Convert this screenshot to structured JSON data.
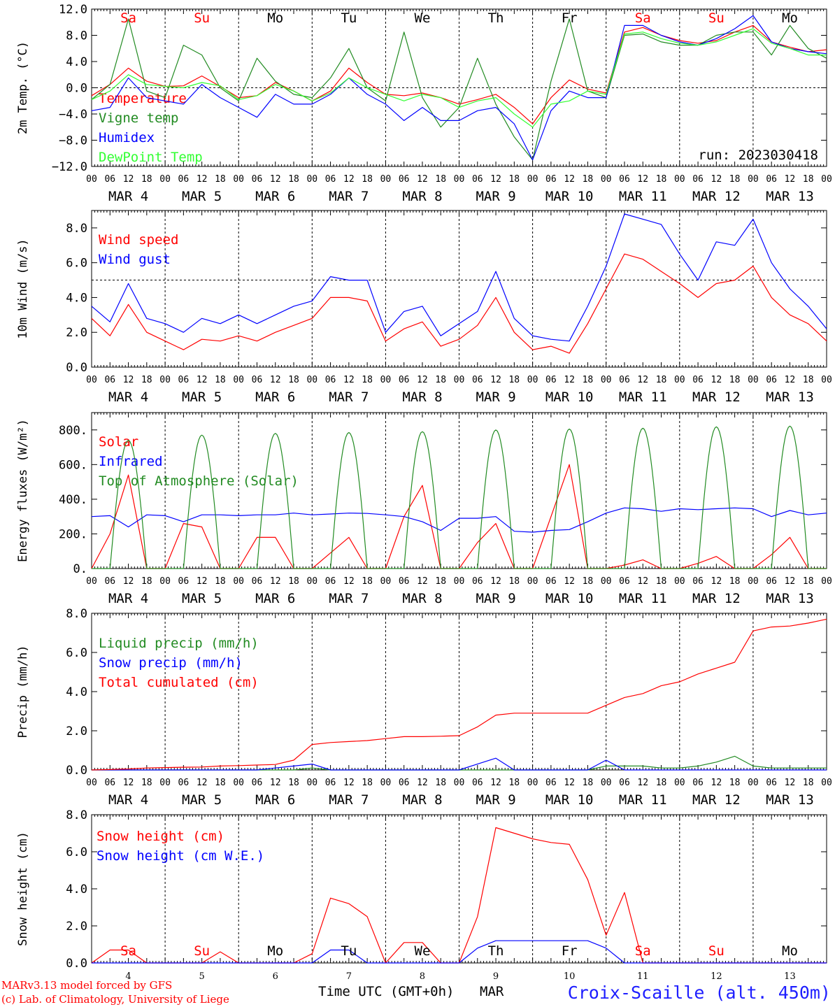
{
  "run_label": "run: 2023030418",
  "hour_ticks": [
    "00",
    "06",
    "12",
    "18"
  ],
  "day_labels": [
    "MAR  4",
    "MAR  5",
    "MAR  6",
    "MAR  7",
    "MAR  8",
    "MAR  9",
    "MAR 10",
    "MAR 11",
    "MAR 12",
    "MAR 13"
  ],
  "weekdays": [
    "Sa",
    "Su",
    "Mo",
    "Tu",
    "We",
    "Th",
    "Fr",
    "Sa",
    "Su",
    "Mo"
  ],
  "weekday_colors": [
    "#ff0000",
    "#ff0000",
    "#000000",
    "#000000",
    "#000000",
    "#000000",
    "#000000",
    "#ff0000",
    "#ff0000",
    "#000000"
  ],
  "bottom_days": [
    "4",
    "5",
    "6",
    "7",
    "8",
    "9",
    "10",
    "11",
    "12",
    "13"
  ],
  "footer": {
    "model": "MARv3.13 model forced by GFS",
    "lab": "(c) Lab. of Climatology, University of Liege",
    "axis_title": "Time UTC (GMT+0h)",
    "axis_month": "MAR",
    "station": "Croix-Scaille (alt. 450m)"
  },
  "chart_data": [
    {
      "type": "line",
      "ylabel": "2m Temp. (°C)",
      "ylim": [
        -12,
        12
      ],
      "yticks": [
        "12.0",
        "8.0",
        "4.0",
        "0.0",
        "−4.0",
        "−8.0",
        "−12.0"
      ],
      "ref_line": 0,
      "x_hours": [
        0,
        6,
        12,
        18,
        24,
        30,
        36,
        42,
        48,
        54,
        60,
        66,
        72,
        78,
        84,
        90,
        96,
        102,
        108,
        114,
        120,
        126,
        132,
        138,
        144,
        150,
        156,
        162,
        168,
        174,
        180,
        186,
        192,
        198,
        204,
        210,
        216,
        222,
        228,
        234,
        240
      ],
      "series": [
        {
          "name": "Temperature",
          "color": "#ff0000",
          "values": [
            -1.2,
            0.5,
            3.0,
            1.0,
            0.2,
            0.3,
            1.8,
            0.2,
            -1.5,
            -1.2,
            0.8,
            -0.5,
            -2.0,
            -0.5,
            3.0,
            0.8,
            -1.0,
            -1.2,
            -0.8,
            -1.5,
            -2.5,
            -1.8,
            -1.0,
            -3.0,
            -5.5,
            -1.5,
            1.2,
            -0.2,
            -0.8,
            8.5,
            9.2,
            8.0,
            7.2,
            6.8,
            7.2,
            8.5,
            9.5,
            7.0,
            6.2,
            5.5,
            5.8
          ]
        },
        {
          "name": "Vigne temp",
          "color": "#228b22",
          "values": [
            -1.8,
            0.5,
            10.5,
            -0.5,
            -1.5,
            6.5,
            5.0,
            0.0,
            -2.0,
            4.5,
            1.0,
            -1.0,
            -1.5,
            1.5,
            6.0,
            0.0,
            -2.0,
            8.5,
            -1.5,
            -6.0,
            -3.0,
            4.5,
            -2.5,
            -7.5,
            -11.0,
            1.0,
            10.5,
            -0.5,
            -1.5,
            8.0,
            8.2,
            7.0,
            6.5,
            6.5,
            8.0,
            8.5,
            8.5,
            5.0,
            9.5,
            6.0,
            4.5
          ]
        },
        {
          "name": "Humidex",
          "color": "#0000ff",
          "values": [
            -3.5,
            -3.0,
            1.5,
            -1.5,
            -2.0,
            -2.5,
            0.5,
            -1.5,
            -3.0,
            -4.5,
            -1.0,
            -2.5,
            -2.5,
            -1.0,
            1.5,
            -1.0,
            -2.5,
            -5.0,
            -3.0,
            -5.0,
            -5.0,
            -3.5,
            -3.0,
            -5.5,
            -11.0,
            -3.5,
            -0.5,
            -1.5,
            -1.5,
            9.5,
            9.5,
            8.0,
            7.0,
            6.5,
            7.5,
            9.0,
            11.0,
            7.0,
            6.0,
            5.5,
            5.2
          ]
        },
        {
          "name": "DewPoint Temp",
          "color": "#33ff33",
          "values": [
            -1.8,
            -0.5,
            2.0,
            0.5,
            0.2,
            0.0,
            0.8,
            0.3,
            -1.8,
            -1.2,
            0.5,
            -0.5,
            -2.0,
            -0.8,
            1.5,
            0.0,
            -1.0,
            -2.0,
            -1.0,
            -1.5,
            -3.0,
            -2.0,
            -1.5,
            -4.0,
            -6.0,
            -2.5,
            -2.0,
            -0.5,
            -1.0,
            8.2,
            8.5,
            7.5,
            6.8,
            6.5,
            7.0,
            8.0,
            9.0,
            6.8,
            6.0,
            5.0,
            5.0
          ]
        }
      ]
    },
    {
      "type": "line",
      "ylabel": "10m Wind (m/s)",
      "ylim": [
        0,
        9
      ],
      "yticks": [
        "8.0",
        "6.0",
        "4.0",
        "2.0",
        "0.0"
      ],
      "ref_line": 5,
      "x_hours": [
        0,
        6,
        12,
        18,
        24,
        30,
        36,
        42,
        48,
        54,
        60,
        66,
        72,
        78,
        84,
        90,
        96,
        102,
        108,
        114,
        120,
        126,
        132,
        138,
        144,
        150,
        156,
        162,
        168,
        174,
        180,
        186,
        192,
        198,
        204,
        210,
        216,
        222,
        228,
        234,
        240
      ],
      "series": [
        {
          "name": "Wind speed",
          "color": "#ff0000",
          "values": [
            2.8,
            1.8,
            3.6,
            2.0,
            1.5,
            1.0,
            1.6,
            1.5,
            1.8,
            1.5,
            2.0,
            2.4,
            2.8,
            4.0,
            4.0,
            3.8,
            1.5,
            2.2,
            2.6,
            1.2,
            1.6,
            2.4,
            4.0,
            2.0,
            1.0,
            1.2,
            0.8,
            2.5,
            4.5,
            6.5,
            6.2,
            5.5,
            4.8,
            4.0,
            4.8,
            5.0,
            5.8,
            4.0,
            3.0,
            2.5,
            1.5
          ]
        },
        {
          "name": "Wind gust",
          "color": "#0000ff",
          "values": [
            3.5,
            2.6,
            4.8,
            2.8,
            2.5,
            2.0,
            2.8,
            2.5,
            3.0,
            2.5,
            3.0,
            3.5,
            3.8,
            5.2,
            5.0,
            5.0,
            2.0,
            3.2,
            3.5,
            1.8,
            2.5,
            3.2,
            5.5,
            2.8,
            1.8,
            1.6,
            1.5,
            3.5,
            5.8,
            8.8,
            8.5,
            8.2,
            6.5,
            5.0,
            7.2,
            7.0,
            8.5,
            6.0,
            4.5,
            3.5,
            2.2
          ]
        }
      ]
    },
    {
      "type": "line",
      "ylabel": "Energy fluxes (W/m²)",
      "ylim": [
        0,
        900
      ],
      "yticks": [
        "800.",
        "600.",
        "400.",
        "200.",
        "0."
      ],
      "x_hours": [
        0,
        6,
        12,
        18,
        24,
        30,
        36,
        42,
        48,
        54,
        60,
        66,
        72,
        78,
        84,
        90,
        96,
        102,
        108,
        114,
        120,
        126,
        132,
        138,
        144,
        150,
        156,
        162,
        168,
        174,
        180,
        186,
        192,
        198,
        204,
        210,
        216,
        222,
        228,
        234,
        240
      ],
      "series": [
        {
          "name": "Solar",
          "color": "#ff0000",
          "values": [
            0,
            200,
            540,
            0,
            0,
            260,
            240,
            0,
            0,
            180,
            180,
            0,
            0,
            90,
            180,
            0,
            0,
            300,
            480,
            0,
            0,
            150,
            260,
            0,
            0,
            300,
            600,
            0,
            0,
            20,
            50,
            0,
            0,
            30,
            70,
            0,
            0,
            80,
            180,
            0,
            0
          ]
        },
        {
          "name": "Infrared",
          "color": "#0000ff",
          "values": [
            300,
            305,
            240,
            310,
            305,
            270,
            310,
            310,
            305,
            310,
            310,
            320,
            310,
            315,
            320,
            318,
            310,
            300,
            270,
            220,
            290,
            290,
            300,
            215,
            210,
            220,
            225,
            270,
            320,
            350,
            345,
            330,
            345,
            340,
            345,
            350,
            345,
            300,
            335,
            310,
            320
          ]
        },
        {
          "name": "Top of Atmosphere (Solar)",
          "color": "#228b22",
          "daily_peaks": [
            740,
            770,
            780,
            785,
            790,
            800,
            805,
            810,
            818,
            822
          ]
        }
      ]
    },
    {
      "type": "line",
      "ylabel": "Precip (mm/h)",
      "ylim": [
        0,
        8
      ],
      "yticks": [
        "8.0",
        "6.0",
        "4.0",
        "2.0",
        "0.0"
      ],
      "x_hours": [
        0,
        6,
        12,
        18,
        24,
        30,
        36,
        42,
        48,
        54,
        60,
        66,
        72,
        78,
        84,
        90,
        96,
        102,
        108,
        114,
        120,
        126,
        132,
        138,
        144,
        150,
        156,
        162,
        168,
        174,
        180,
        186,
        192,
        198,
        204,
        210,
        216,
        222,
        228,
        234,
        240
      ],
      "series": [
        {
          "name": "Liquid precip (mm/h)",
          "color": "#228b22",
          "values": [
            0,
            0,
            0,
            0,
            0,
            0,
            0,
            0,
            0,
            0,
            0,
            0,
            0.1,
            0,
            0,
            0,
            0,
            0,
            0,
            0,
            0,
            0,
            0,
            0,
            0,
            0,
            0,
            0,
            0.2,
            0.2,
            0.2,
            0.1,
            0.1,
            0.2,
            0.4,
            0.7,
            0.2,
            0.1,
            0.1,
            0.1,
            0.1
          ]
        },
        {
          "name": "Snow precip (mm/h)",
          "color": "#0000ff",
          "values": [
            0,
            0,
            0,
            0,
            0,
            0,
            0,
            0,
            0,
            0,
            0.1,
            0.2,
            0.3,
            0,
            0,
            0,
            0,
            0,
            0,
            0,
            0,
            0.3,
            0.6,
            0,
            0,
            0,
            0,
            0,
            0.5,
            0,
            0,
            0,
            0,
            0,
            0,
            0,
            0,
            0,
            0,
            0,
            0
          ]
        },
        {
          "name": "Total cumulated (cm)",
          "color": "#ff0000",
          "values": [
            0,
            0.02,
            0.05,
            0.1,
            0.12,
            0.14,
            0.15,
            0.2,
            0.22,
            0.25,
            0.28,
            0.5,
            1.3,
            1.4,
            1.45,
            1.5,
            1.6,
            1.7,
            1.7,
            1.72,
            1.75,
            2.2,
            2.8,
            2.9,
            2.9,
            2.9,
            2.9,
            2.9,
            3.3,
            3.7,
            3.9,
            4.3,
            4.5,
            4.9,
            5.2,
            5.5,
            7.1,
            7.3,
            7.35,
            7.5,
            7.7
          ]
        }
      ]
    },
    {
      "type": "line",
      "ylabel": "Snow height (cm)",
      "ylim": [
        0,
        8
      ],
      "yticks": [
        "8.0",
        "6.0",
        "4.0",
        "2.0",
        "0.0"
      ],
      "x_hours": [
        0,
        6,
        12,
        18,
        24,
        30,
        36,
        42,
        48,
        54,
        60,
        66,
        72,
        78,
        84,
        90,
        96,
        102,
        108,
        114,
        120,
        126,
        132,
        138,
        144,
        150,
        156,
        162,
        168,
        174,
        180,
        186,
        192,
        198,
        204,
        210,
        216,
        222,
        228,
        234,
        240
      ],
      "series": [
        {
          "name": "Snow height (cm)",
          "color": "#ff0000",
          "values": [
            0,
            0.7,
            0.7,
            0,
            0,
            0,
            0,
            0.6,
            0,
            0,
            0,
            0,
            0.5,
            3.5,
            3.2,
            2.5,
            0,
            1.1,
            1.1,
            0,
            0,
            2.5,
            7.3,
            7.0,
            6.7,
            6.5,
            6.4,
            4.5,
            1.5,
            3.8,
            0,
            0,
            0,
            0,
            0,
            0,
            0,
            0,
            0,
            0,
            0
          ]
        },
        {
          "name": "Snow height (cm W.E.)",
          "color": "#0000ff",
          "values": [
            0,
            0,
            0,
            0,
            0,
            0,
            0,
            0,
            0,
            0,
            0,
            0,
            0,
            0.7,
            0.7,
            0,
            0,
            0,
            0,
            0,
            0,
            0.8,
            1.2,
            1.2,
            1.2,
            1.2,
            1.2,
            1.2,
            0.8,
            0,
            0,
            0,
            0,
            0,
            0,
            0,
            0,
            0,
            0,
            0,
            0
          ]
        }
      ]
    }
  ]
}
